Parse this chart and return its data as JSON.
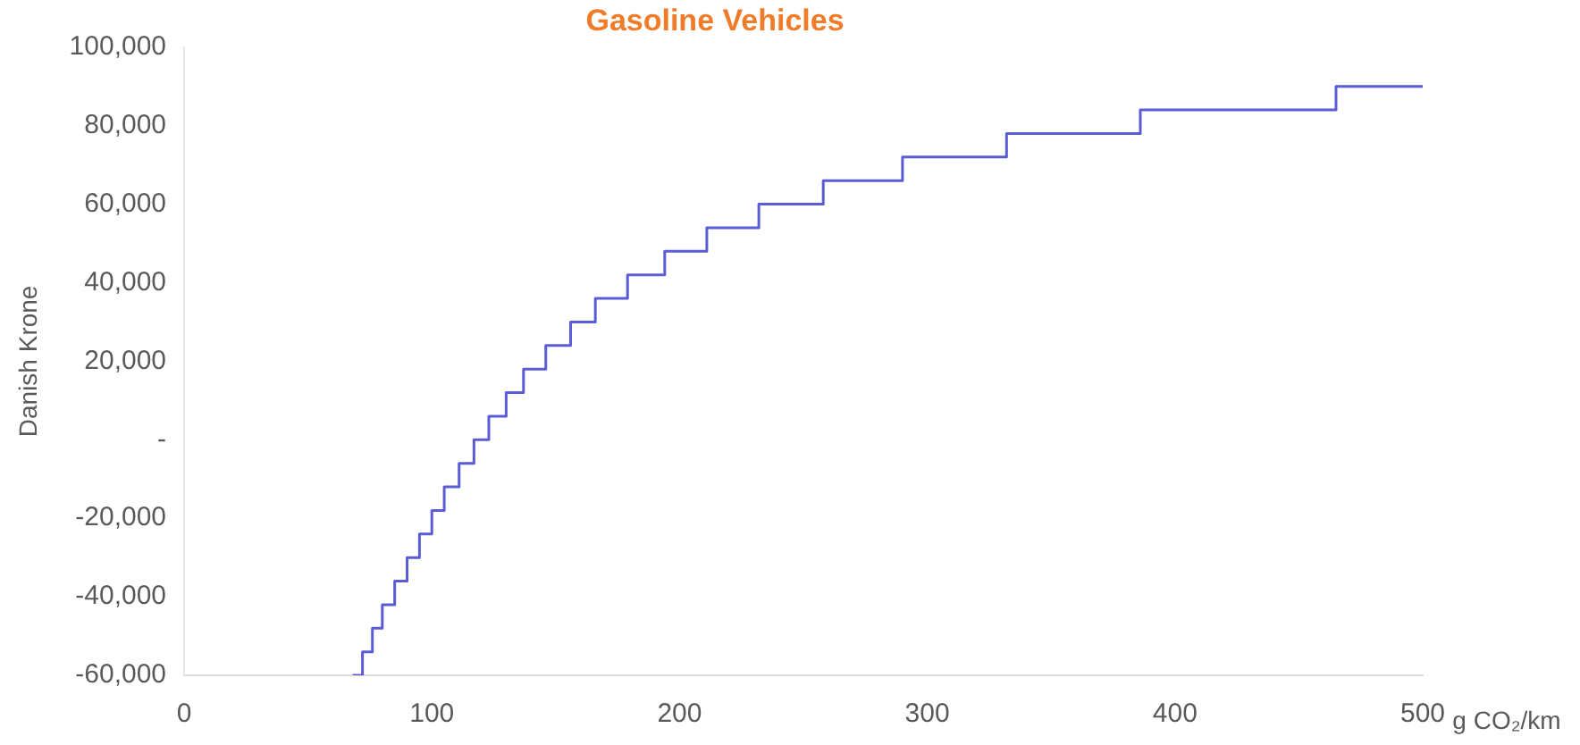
{
  "chart_data": {
    "type": "step",
    "title": "Gasoline Vehicles",
    "xlabel": "g CO₂/km",
    "ylabel": "Danish Krone",
    "x": [
      68,
      72,
      76,
      80,
      85,
      90,
      95,
      100,
      105,
      111,
      117,
      123,
      130,
      137,
      146,
      156,
      166,
      179,
      194,
      211,
      232,
      258,
      290,
      332,
      386,
      465,
      500
    ],
    "series": [
      {
        "color": "#5b5bd6",
        "values": [
          -60000,
          -54000,
          -48000,
          -42000,
          -36000,
          -30000,
          -24000,
          -18000,
          -12000,
          -6000,
          0,
          6000,
          12000,
          18000,
          24000,
          30000,
          36000,
          42000,
          48000,
          54000,
          60000,
          66000,
          72000,
          78000,
          84000,
          90000,
          90000
        ]
      }
    ],
    "xlim": [
      0,
      500
    ],
    "xticks": [
      0,
      100,
      200,
      300,
      400,
      500
    ],
    "ylim": [
      -60000,
      100000
    ],
    "yticks": [
      {
        "value": -60000,
        "label": "-60,000"
      },
      {
        "value": -40000,
        "label": "-40,000"
      },
      {
        "value": -20000,
        "label": "-20,000"
      },
      {
        "value": 0,
        "label": "-"
      },
      {
        "value": 20000,
        "label": "20,000"
      },
      {
        "value": 40000,
        "label": "40,000"
      },
      {
        "value": 60000,
        "label": "60,000"
      },
      {
        "value": 80000,
        "label": "80,000"
      },
      {
        "value": 100000,
        "label": "100,000"
      }
    ],
    "grid": false,
    "legend": false
  }
}
